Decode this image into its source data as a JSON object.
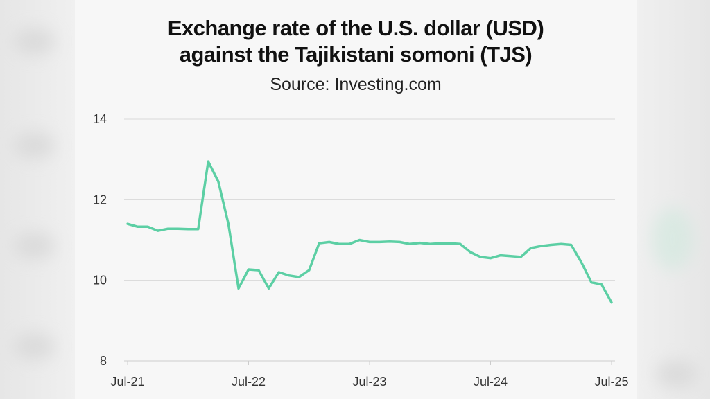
{
  "title_line1": "Exchange rate of the U.S. dollar (USD)",
  "title_line2": "against the Tajikistani somoni (TJS)",
  "subtitle": "Source: Investing.com",
  "colors": {
    "line": "#5ccfa4",
    "grid": "#d9d9d9",
    "axis": "#cccccc"
  },
  "chart_data": {
    "type": "line",
    "title": "Exchange rate of the U.S. dollar (USD) against the Tajikistani somoni (TJS)",
    "subtitle": "Source: Investing.com",
    "xlabel": "",
    "ylabel": "",
    "ylim": [
      8,
      14
    ],
    "yticks": [
      8,
      10,
      12,
      14
    ],
    "xticks": [
      "Jul-21",
      "Jul-22",
      "Jul-23",
      "Jul-24",
      "Jul-25"
    ],
    "grid": true,
    "x": [
      "2021-07",
      "2021-08",
      "2021-09",
      "2021-10",
      "2021-11",
      "2021-12",
      "2022-01",
      "2022-02",
      "2022-03",
      "2022-04",
      "2022-05",
      "2022-06",
      "2022-07",
      "2022-08",
      "2022-09",
      "2022-10",
      "2022-11",
      "2022-12",
      "2023-01",
      "2023-02",
      "2023-03",
      "2023-04",
      "2023-05",
      "2023-06",
      "2023-07",
      "2023-08",
      "2023-09",
      "2023-10",
      "2023-11",
      "2023-12",
      "2024-01",
      "2024-02",
      "2024-03",
      "2024-04",
      "2024-05",
      "2024-06",
      "2024-07",
      "2024-08",
      "2024-09",
      "2024-10",
      "2024-11",
      "2024-12",
      "2025-01",
      "2025-02",
      "2025-03",
      "2025-04",
      "2025-05",
      "2025-06",
      "2025-07"
    ],
    "series": [
      {
        "values": [
          11.4,
          11.33,
          11.33,
          11.23,
          11.28,
          11.28,
          11.27,
          11.27,
          12.95,
          12.45,
          11.4,
          9.8,
          10.27,
          10.25,
          9.8,
          10.2,
          10.12,
          10.08,
          10.25,
          10.92,
          10.95,
          10.9,
          10.9,
          11.0,
          10.95,
          10.95,
          10.96,
          10.95,
          10.9,
          10.93,
          10.9,
          10.92,
          10.92,
          10.9,
          10.7,
          10.58,
          10.55,
          10.62,
          10.6,
          10.58,
          10.8,
          10.85,
          10.88,
          10.9,
          10.88,
          10.45,
          9.95,
          9.9,
          9.45
        ]
      }
    ]
  }
}
